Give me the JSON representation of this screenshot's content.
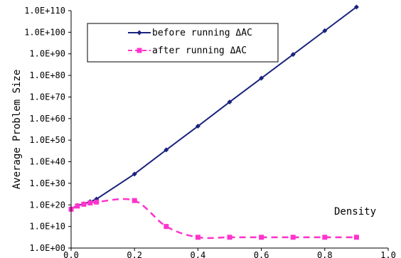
{
  "chart_data": {
    "type": "line",
    "ylabel": "Average Problem Size",
    "annotation": "Density",
    "y_scale": "log10",
    "ylim": [
      1,
      1e+110
    ],
    "xlim": [
      0.0,
      1.0
    ],
    "grid": false,
    "legend_position": "top-left",
    "x_ticks": [
      "0.0",
      "0.2",
      "0.4",
      "0.6",
      "0.8",
      "1.0"
    ],
    "y_ticks": [
      "1.0E+00",
      "1.0E+10",
      "1.0E+20",
      "1.0E+30",
      "1.0E+40",
      "1.0E+50",
      "1.0E+60",
      "1.0E+70",
      "1.0E+80",
      "1.0E+90",
      "1.0E+100",
      "1.0E+110"
    ],
    "x": [
      0.0,
      0.02,
      0.04,
      0.06,
      0.08,
      0.2,
      0.3,
      0.4,
      0.5,
      0.6,
      0.7,
      0.8,
      0.9
    ],
    "series": [
      {
        "name": "before running ΔAC",
        "color": "#1a237e",
        "marker": "diamond",
        "line_style": "solid",
        "values": [
          2e+18,
          5e+19,
          3e+20,
          3e+21,
          5e+22,
          2e+34,
          3e+45,
          3e+56,
          5e+67,
          5e+78,
          5e+89,
          5e+100,
          5e+111
        ]
      },
      {
        "name": "after running ΔAC",
        "color": "#ff33cc",
        "marker": "square",
        "line_style": "dashed",
        "values": [
          1e+18,
          3e+19,
          2e+20,
          8e+20,
          2e+21,
          1e+22,
          10000000000.0,
          100000.0,
          100000.0,
          100000.0,
          100000.0,
          100000.0,
          100000.0
        ]
      }
    ]
  }
}
